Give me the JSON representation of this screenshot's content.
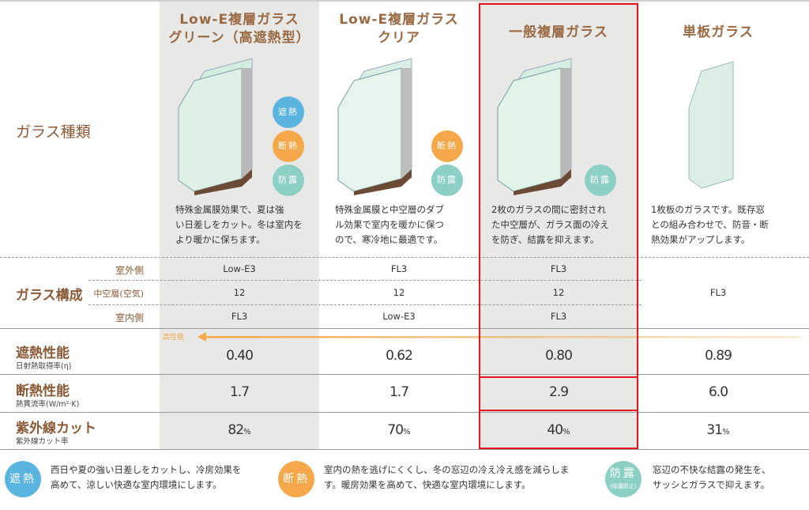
{
  "columns": [
    {
      "title_line1": "Low-E複層ガラス",
      "title_line2": "グリーン（高遮熱型）",
      "desc": [
        "特殊金属膜効果で、夏は強",
        "い日差しをカット。冬は室内を",
        "より暖かに保ちます。"
      ],
      "badges": [
        "遮熱",
        "断熱",
        "防露"
      ],
      "outer": "Low-E3",
      "air": "12",
      "inner": "FL3",
      "shading": "0.40",
      "insulation": "1.7",
      "uv": "82",
      "uv_unit": "%"
    },
    {
      "title_line1": "Low-E複層ガラス",
      "title_line2": "クリア",
      "desc": [
        "特殊金属膜と中空層のダブ",
        "ル効果で室内を暖かに保つ",
        "ので、寒冷地に最適です。"
      ],
      "badges": [
        "断熱",
        "防露"
      ],
      "outer": "FL3",
      "air": "12",
      "inner": "Low-E3",
      "shading": "0.62",
      "insulation": "1.7",
      "uv": "70",
      "uv_unit": "%"
    },
    {
      "title_line1": "一般複層ガラス",
      "title_line2": "",
      "desc": [
        "2枚のガラスの間に密封され",
        "た中空層が、ガラス面の冷え",
        "を防ぎ、結露を抑えます。"
      ],
      "badges": [
        "防露"
      ],
      "outer": "FL3",
      "air": "12",
      "inner": "FL3",
      "shading": "0.80",
      "insulation": "2.9",
      "uv": "40",
      "uv_unit": "%"
    },
    {
      "title_line1": "単板ガラス",
      "title_line2": "",
      "desc": [
        "1枚板のガラスです。既存窓",
        "との組み合わせで、防音・断",
        "熱効果がアップします。"
      ],
      "badges": [],
      "single": "FL3",
      "shading": "0.89",
      "insulation": "6.0",
      "uv": "31",
      "uv_unit": "%"
    }
  ],
  "rows": {
    "glass_type": "ガラス種類",
    "composition": "ガラス構成",
    "outer_side": "室外側",
    "air_layer": "中空層(空気)",
    "inner_side": "室内側",
    "shading_title": "遮熱性能",
    "shading_sub": "日射熱取得率(η)",
    "insulation_title": "断熱性能",
    "insulation_sub": "熱貫流率(W/m²·K)",
    "uv_title": "紫外線カット",
    "uv_sub": "紫外線カット率",
    "arrow_label": "高性能"
  },
  "legend": [
    {
      "badge": "遮熱",
      "lines": [
        "西日や夏の強い日差しをカットし、冷房効果を",
        "高めて、涼しい快適な室内環境にします。"
      ]
    },
    {
      "badge": "断熱",
      "lines": [
        "室内の熱を逃げにくくし、冬の窓辺の冷え冷え感を減らしま",
        "す。暖房効果を高めて、快適な室内環境にします。"
      ]
    },
    {
      "badge": "防露",
      "badge_sub": "(結露防止)",
      "lines": [
        "窓辺の不快な結露の発生を、",
        "サッシとガラスで抑えます。"
      ]
    }
  ],
  "colors": {
    "title": "#9a6a44",
    "label": "#8a5a36",
    "highlight": "#e3141b",
    "arrow": "#f5a84a",
    "column_bg": "#e8e8e7",
    "shade": "#5bb4e0",
    "insul": "#f5a84a",
    "dew": "#8ccfc4"
  }
}
